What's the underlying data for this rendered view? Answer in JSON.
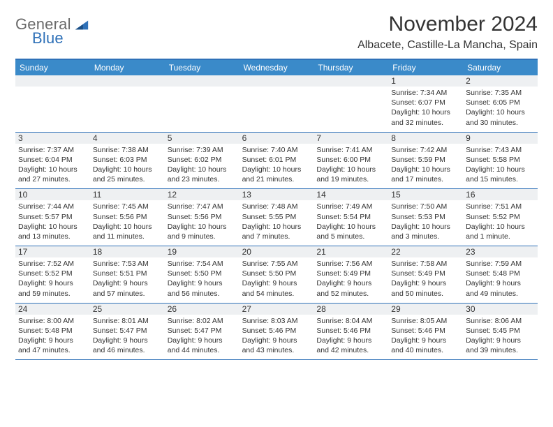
{
  "brand": {
    "name1": "General",
    "name2": "Blue"
  },
  "title": "November 2024",
  "location": "Albacete, Castille-La Mancha, Spain",
  "colors": {
    "header_bar": "#3a8ac9",
    "rule": "#2f71b8",
    "band": "#eef0f2",
    "text": "#333333",
    "bg": "#ffffff"
  },
  "typography": {
    "title_fontsize": 30,
    "location_fontsize": 16,
    "header_fontsize": 12,
    "cell_fontsize": 10.5
  },
  "day_headers": [
    "Sunday",
    "Monday",
    "Tuesday",
    "Wednesday",
    "Thursday",
    "Friday",
    "Saturday"
  ],
  "weeks": [
    [
      {
        "n": "",
        "empty": true
      },
      {
        "n": "",
        "empty": true
      },
      {
        "n": "",
        "empty": true
      },
      {
        "n": "",
        "empty": true
      },
      {
        "n": "",
        "empty": true
      },
      {
        "n": "1",
        "sr": "Sunrise: 7:34 AM",
        "ss": "Sunset: 6:07 PM",
        "dl": "Daylight: 10 hours and 32 minutes."
      },
      {
        "n": "2",
        "sr": "Sunrise: 7:35 AM",
        "ss": "Sunset: 6:05 PM",
        "dl": "Daylight: 10 hours and 30 minutes."
      }
    ],
    [
      {
        "n": "3",
        "sr": "Sunrise: 7:37 AM",
        "ss": "Sunset: 6:04 PM",
        "dl": "Daylight: 10 hours and 27 minutes."
      },
      {
        "n": "4",
        "sr": "Sunrise: 7:38 AM",
        "ss": "Sunset: 6:03 PM",
        "dl": "Daylight: 10 hours and 25 minutes."
      },
      {
        "n": "5",
        "sr": "Sunrise: 7:39 AM",
        "ss": "Sunset: 6:02 PM",
        "dl": "Daylight: 10 hours and 23 minutes."
      },
      {
        "n": "6",
        "sr": "Sunrise: 7:40 AM",
        "ss": "Sunset: 6:01 PM",
        "dl": "Daylight: 10 hours and 21 minutes."
      },
      {
        "n": "7",
        "sr": "Sunrise: 7:41 AM",
        "ss": "Sunset: 6:00 PM",
        "dl": "Daylight: 10 hours and 19 minutes."
      },
      {
        "n": "8",
        "sr": "Sunrise: 7:42 AM",
        "ss": "Sunset: 5:59 PM",
        "dl": "Daylight: 10 hours and 17 minutes."
      },
      {
        "n": "9",
        "sr": "Sunrise: 7:43 AM",
        "ss": "Sunset: 5:58 PM",
        "dl": "Daylight: 10 hours and 15 minutes."
      }
    ],
    [
      {
        "n": "10",
        "sr": "Sunrise: 7:44 AM",
        "ss": "Sunset: 5:57 PM",
        "dl": "Daylight: 10 hours and 13 minutes."
      },
      {
        "n": "11",
        "sr": "Sunrise: 7:45 AM",
        "ss": "Sunset: 5:56 PM",
        "dl": "Daylight: 10 hours and 11 minutes."
      },
      {
        "n": "12",
        "sr": "Sunrise: 7:47 AM",
        "ss": "Sunset: 5:56 PM",
        "dl": "Daylight: 10 hours and 9 minutes."
      },
      {
        "n": "13",
        "sr": "Sunrise: 7:48 AM",
        "ss": "Sunset: 5:55 PM",
        "dl": "Daylight: 10 hours and 7 minutes."
      },
      {
        "n": "14",
        "sr": "Sunrise: 7:49 AM",
        "ss": "Sunset: 5:54 PM",
        "dl": "Daylight: 10 hours and 5 minutes."
      },
      {
        "n": "15",
        "sr": "Sunrise: 7:50 AM",
        "ss": "Sunset: 5:53 PM",
        "dl": "Daylight: 10 hours and 3 minutes."
      },
      {
        "n": "16",
        "sr": "Sunrise: 7:51 AM",
        "ss": "Sunset: 5:52 PM",
        "dl": "Daylight: 10 hours and 1 minute."
      }
    ],
    [
      {
        "n": "17",
        "sr": "Sunrise: 7:52 AM",
        "ss": "Sunset: 5:52 PM",
        "dl": "Daylight: 9 hours and 59 minutes."
      },
      {
        "n": "18",
        "sr": "Sunrise: 7:53 AM",
        "ss": "Sunset: 5:51 PM",
        "dl": "Daylight: 9 hours and 57 minutes."
      },
      {
        "n": "19",
        "sr": "Sunrise: 7:54 AM",
        "ss": "Sunset: 5:50 PM",
        "dl": "Daylight: 9 hours and 56 minutes."
      },
      {
        "n": "20",
        "sr": "Sunrise: 7:55 AM",
        "ss": "Sunset: 5:50 PM",
        "dl": "Daylight: 9 hours and 54 minutes."
      },
      {
        "n": "21",
        "sr": "Sunrise: 7:56 AM",
        "ss": "Sunset: 5:49 PM",
        "dl": "Daylight: 9 hours and 52 minutes."
      },
      {
        "n": "22",
        "sr": "Sunrise: 7:58 AM",
        "ss": "Sunset: 5:49 PM",
        "dl": "Daylight: 9 hours and 50 minutes."
      },
      {
        "n": "23",
        "sr": "Sunrise: 7:59 AM",
        "ss": "Sunset: 5:48 PM",
        "dl": "Daylight: 9 hours and 49 minutes."
      }
    ],
    [
      {
        "n": "24",
        "sr": "Sunrise: 8:00 AM",
        "ss": "Sunset: 5:48 PM",
        "dl": "Daylight: 9 hours and 47 minutes."
      },
      {
        "n": "25",
        "sr": "Sunrise: 8:01 AM",
        "ss": "Sunset: 5:47 PM",
        "dl": "Daylight: 9 hours and 46 minutes."
      },
      {
        "n": "26",
        "sr": "Sunrise: 8:02 AM",
        "ss": "Sunset: 5:47 PM",
        "dl": "Daylight: 9 hours and 44 minutes."
      },
      {
        "n": "27",
        "sr": "Sunrise: 8:03 AM",
        "ss": "Sunset: 5:46 PM",
        "dl": "Daylight: 9 hours and 43 minutes."
      },
      {
        "n": "28",
        "sr": "Sunrise: 8:04 AM",
        "ss": "Sunset: 5:46 PM",
        "dl": "Daylight: 9 hours and 42 minutes."
      },
      {
        "n": "29",
        "sr": "Sunrise: 8:05 AM",
        "ss": "Sunset: 5:46 PM",
        "dl": "Daylight: 9 hours and 40 minutes."
      },
      {
        "n": "30",
        "sr": "Sunrise: 8:06 AM",
        "ss": "Sunset: 5:45 PM",
        "dl": "Daylight: 9 hours and 39 minutes."
      }
    ]
  ]
}
